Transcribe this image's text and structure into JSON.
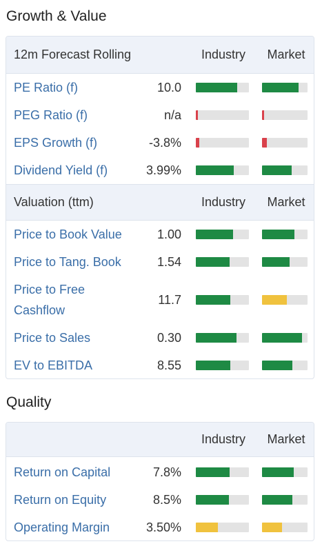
{
  "colors": {
    "good": "#1e8a44",
    "neutral": "#f0c23e",
    "bad": "#d9414b",
    "link": "#3a6ea8"
  },
  "sections": [
    {
      "title": "Growth & Value",
      "groups": [
        {
          "label": "12m Forecast Rolling",
          "industry_label": "Industry",
          "market_label": "Market",
          "rows": [
            {
              "name": "PE Ratio (f)",
              "value": "10.0",
              "industry": {
                "level": 0.78,
                "status": "good"
              },
              "market": {
                "level": 0.8,
                "status": "good"
              }
            },
            {
              "name": "PEG Ratio (f)",
              "value": "n/a",
              "industry": {
                "level": 0.04,
                "status": "bad"
              },
              "market": {
                "level": 0.04,
                "status": "bad"
              }
            },
            {
              "name": "EPS Growth (f)",
              "value": "-3.8%",
              "industry": {
                "level": 0.07,
                "status": "bad"
              },
              "market": {
                "level": 0.1,
                "status": "bad"
              }
            },
            {
              "name": "Dividend Yield (f)",
              "value": "3.99%",
              "industry": {
                "level": 0.72,
                "status": "good"
              },
              "market": {
                "level": 0.65,
                "status": "good"
              }
            }
          ]
        },
        {
          "label": "Valuation (ttm)",
          "industry_label": "Industry",
          "market_label": "Market",
          "rows": [
            {
              "name": "Price to Book Value",
              "value": "1.00",
              "industry": {
                "level": 0.7,
                "status": "good"
              },
              "market": {
                "level": 0.71,
                "status": "good"
              }
            },
            {
              "name": "Price to Tang. Book",
              "value": "1.54",
              "industry": {
                "level": 0.63,
                "status": "good"
              },
              "market": {
                "level": 0.61,
                "status": "good"
              }
            },
            {
              "name": "Price to Free Cashflow",
              "value": "11.7",
              "industry": {
                "level": 0.65,
                "status": "good"
              },
              "market": {
                "level": 0.55,
                "status": "neutral"
              }
            },
            {
              "name": "Price to Sales",
              "value": "0.30",
              "industry": {
                "level": 0.77,
                "status": "good"
              },
              "market": {
                "level": 0.88,
                "status": "good"
              }
            },
            {
              "name": "EV to EBITDA",
              "value": "8.55",
              "industry": {
                "level": 0.65,
                "status": "good"
              },
              "market": {
                "level": 0.67,
                "status": "good"
              }
            }
          ]
        }
      ]
    },
    {
      "title": "Quality",
      "groups": [
        {
          "label": "",
          "industry_label": "Industry",
          "market_label": "Market",
          "rows": [
            {
              "name": "Return on Capital",
              "value": "7.8%",
              "industry": {
                "level": 0.64,
                "status": "good"
              },
              "market": {
                "level": 0.7,
                "status": "good"
              }
            },
            {
              "name": "Return on Equity",
              "value": "8.5%",
              "industry": {
                "level": 0.62,
                "status": "good"
              },
              "market": {
                "level": 0.67,
                "status": "good"
              }
            },
            {
              "name": "Operating Margin",
              "value": "3.50%",
              "industry": {
                "level": 0.42,
                "status": "neutral"
              },
              "market": {
                "level": 0.44,
                "status": "neutral"
              }
            }
          ]
        }
      ]
    }
  ]
}
